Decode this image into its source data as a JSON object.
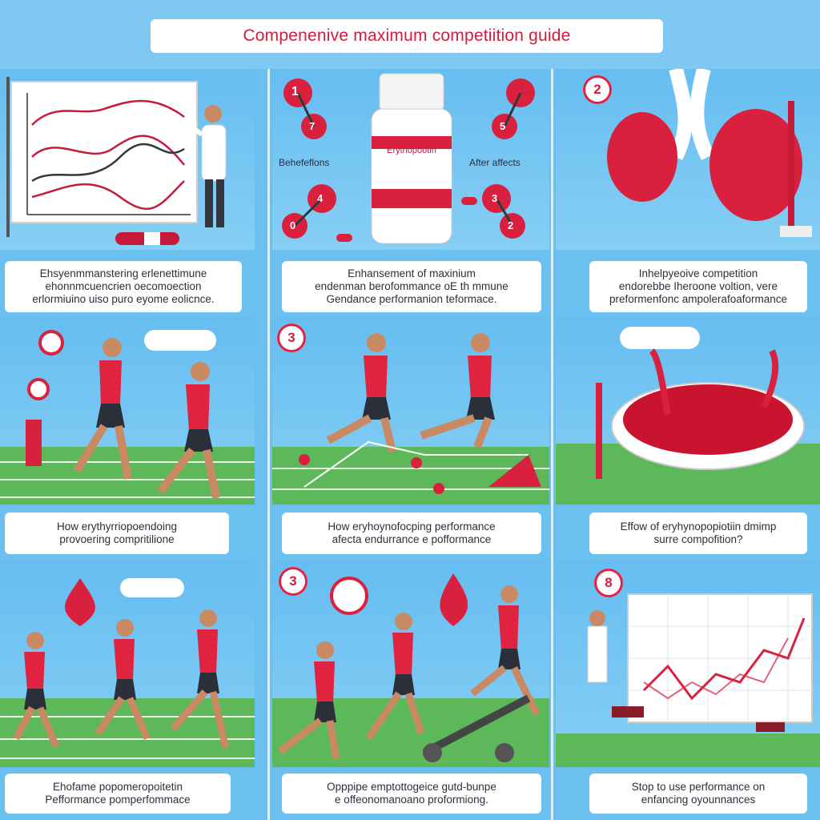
{
  "title": "Compenenive maximum competiition guide",
  "panels": {
    "p1": {
      "caption": [
        "Ehsyenmmanstering erlenettimune",
        "ehonnmcuencrien oecomoection",
        "erlormiuino uiso puro eyome eolicnce."
      ]
    },
    "p2": {
      "badge": "1",
      "nodes": [
        "7",
        "0",
        "4",
        "5",
        "3",
        "2"
      ],
      "left_label": "Behefeflons",
      "right_label": "After affects",
      "bottle_label": "Erythopootin",
      "caption": [
        "Enhansement of maxinium",
        "endenman berofommance oE th mmune",
        "Gendance performanion teformace."
      ]
    },
    "p3": {
      "badge": "2",
      "caption": [
        "Inhelpyeoive competition",
        "endorebbe   Iheroone voltion, vere",
        "preformenfonc ampolerafoaformance"
      ]
    },
    "p4": {
      "caption": [
        "How erythyrriopoendoing",
        "provoering compritilione"
      ]
    },
    "p5": {
      "badge": "3",
      "caption": [
        "How eryhoynofocping performance",
        "afecta endurrance e pofformance"
      ]
    },
    "p6": {
      "caption": [
        "Effow of eryhynopopiotiin dmimp",
        "surre compofition?"
      ]
    },
    "p7": {
      "caption": [
        "Ehofame popomeropoitetin",
        "Pefformance pomperfommace"
      ]
    },
    "p8": {
      "badge": "3",
      "caption": [
        "Opppipe emptottogeice gutd-bunpe",
        "e offeonomanoano proformiong."
      ]
    },
    "p9": {
      "badge": "8",
      "caption": [
        "Stop to use performance on",
        "enfancing oyounnances"
      ]
    }
  },
  "colors": {
    "accent": "#d21c3f",
    "sky": "#6cc0ef",
    "grass": "#5db85a",
    "shirt": "#e0233f",
    "shorts": "#2b2f3a"
  }
}
